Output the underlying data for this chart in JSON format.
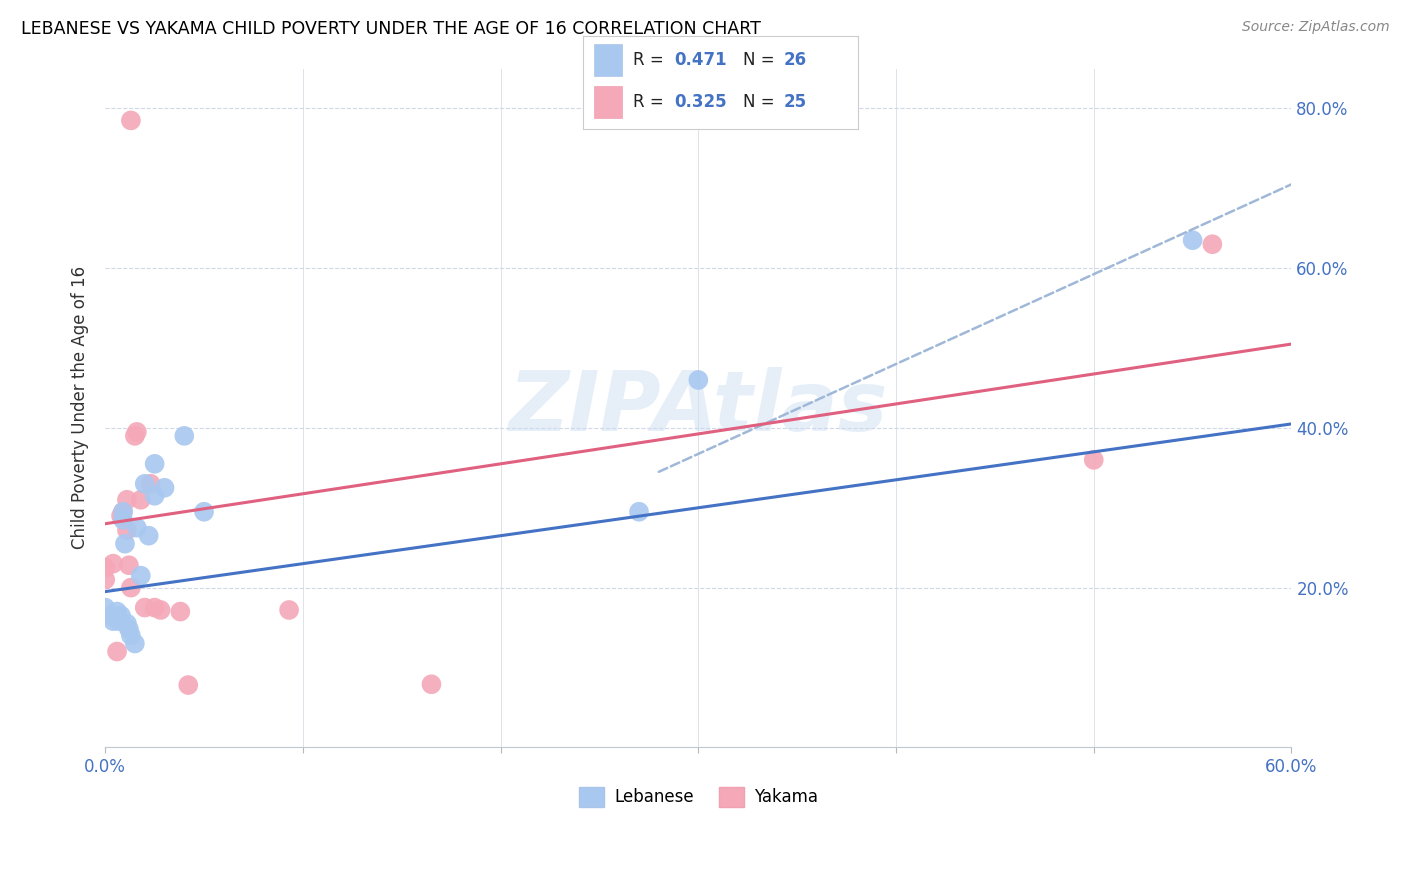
{
  "title": "LEBANESE VS YAKAMA CHILD POVERTY UNDER THE AGE OF 16 CORRELATION CHART",
  "source": "Source: ZipAtlas.com",
  "ylabel": "Child Poverty Under the Age of 16",
  "xlim": [
    0.0,
    0.6
  ],
  "ylim": [
    0.0,
    0.85
  ],
  "xticks": [
    0.0,
    0.1,
    0.2,
    0.3,
    0.4,
    0.5,
    0.6
  ],
  "yticks": [
    0.0,
    0.2,
    0.4,
    0.6,
    0.8
  ],
  "right_ytick_labels": [
    "",
    "20.0%",
    "40.0%",
    "60.0%",
    "80.0%"
  ],
  "xtick_labels": [
    "0.0%",
    "",
    "",
    "",
    "",
    "",
    "60.0%"
  ],
  "watermark": "ZIPAtlas",
  "lebanese_color": "#a8c8f0",
  "yakama_color": "#f4a8b8",
  "trend_blue_color": "#4472c4",
  "trend_pink_color": "#e06080",
  "trend_dashed_color": "#a0b8d8",
  "lebanese_x": [
    0.0,
    0.003,
    0.004,
    0.005,
    0.006,
    0.007,
    0.008,
    0.009,
    0.009,
    0.01,
    0.011,
    0.012,
    0.013,
    0.015,
    0.016,
    0.018,
    0.02,
    0.022,
    0.025,
    0.025,
    0.03,
    0.04,
    0.05,
    0.27,
    0.3,
    0.55
  ],
  "lebanese_y": [
    0.175,
    0.165,
    0.158,
    0.162,
    0.17,
    0.158,
    0.165,
    0.285,
    0.295,
    0.255,
    0.155,
    0.148,
    0.14,
    0.13,
    0.275,
    0.215,
    0.33,
    0.265,
    0.355,
    0.315,
    0.325,
    0.39,
    0.295,
    0.295,
    0.46,
    0.635
  ],
  "yakama_x": [
    0.0,
    0.0,
    0.004,
    0.006,
    0.008,
    0.009,
    0.011,
    0.011,
    0.012,
    0.013,
    0.015,
    0.016,
    0.018,
    0.02,
    0.023,
    0.025,
    0.028,
    0.038,
    0.042,
    0.093,
    0.165,
    0.013,
    0.5,
    0.56
  ],
  "yakama_y": [
    0.21,
    0.225,
    0.23,
    0.12,
    0.29,
    0.295,
    0.31,
    0.272,
    0.228,
    0.2,
    0.39,
    0.395,
    0.31,
    0.175,
    0.33,
    0.175,
    0.172,
    0.17,
    0.078,
    0.172,
    0.079,
    0.785,
    0.36,
    0.63
  ],
  "blue_trend_x0": 0.0,
  "blue_trend_y0": 0.195,
  "blue_trend_x1": 0.6,
  "blue_trend_y1": 0.405,
  "pink_trend_x0": 0.0,
  "pink_trend_y0": 0.28,
  "pink_trend_x1": 0.6,
  "pink_trend_y1": 0.505,
  "dashed_trend_x0": 0.28,
  "dashed_trend_y0": 0.345,
  "dashed_trend_x1": 0.6,
  "dashed_trend_y1": 0.705
}
